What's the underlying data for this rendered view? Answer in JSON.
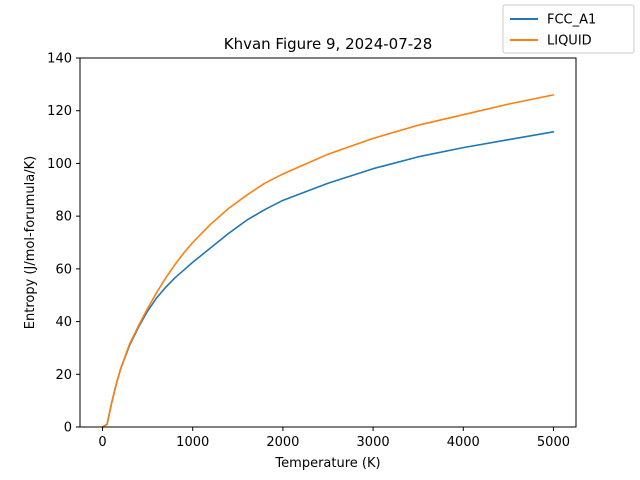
{
  "chart_data": {
    "type": "line",
    "title": "Khvan Figure 9, 2024-07-28",
    "xlabel": "Temperature (K)",
    "ylabel": "Entropy (J/mol-forumula/K)",
    "xlim": [
      -250,
      5250
    ],
    "ylim": [
      0,
      140
    ],
    "xticks": [
      0,
      1000,
      2000,
      3000,
      4000,
      5000
    ],
    "yticks": [
      0,
      20,
      40,
      60,
      80,
      100,
      120,
      140
    ],
    "grid": false,
    "legend_position": "top-right (outside axes)",
    "x": [
      0,
      50,
      100,
      150,
      200,
      300,
      400,
      500,
      600,
      700,
      800,
      900,
      1000,
      1200,
      1400,
      1600,
      1800,
      2000,
      2500,
      3000,
      3500,
      4000,
      4500,
      5000
    ],
    "series": [
      {
        "name": "FCC_A1",
        "color": "#1f77b4",
        "values": [
          0,
          1.0,
          9.0,
          16.0,
          22.0,
          31.0,
          38.0,
          44.0,
          49.0,
          53.0,
          56.5,
          59.5,
          62.5,
          68.0,
          73.5,
          78.5,
          82.5,
          86.0,
          92.5,
          98.0,
          102.5,
          106.0,
          109.0,
          112.0
        ]
      },
      {
        "name": "LIQUID",
        "color": "#ff7f0e",
        "values": [
          0,
          1.0,
          9.0,
          16.0,
          22.0,
          31.5,
          38.5,
          45.0,
          51.0,
          56.5,
          61.5,
          66.0,
          70.0,
          77.0,
          83.0,
          88.0,
          92.5,
          96.0,
          103.5,
          109.5,
          114.5,
          118.5,
          122.5,
          126.0
        ]
      }
    ]
  }
}
